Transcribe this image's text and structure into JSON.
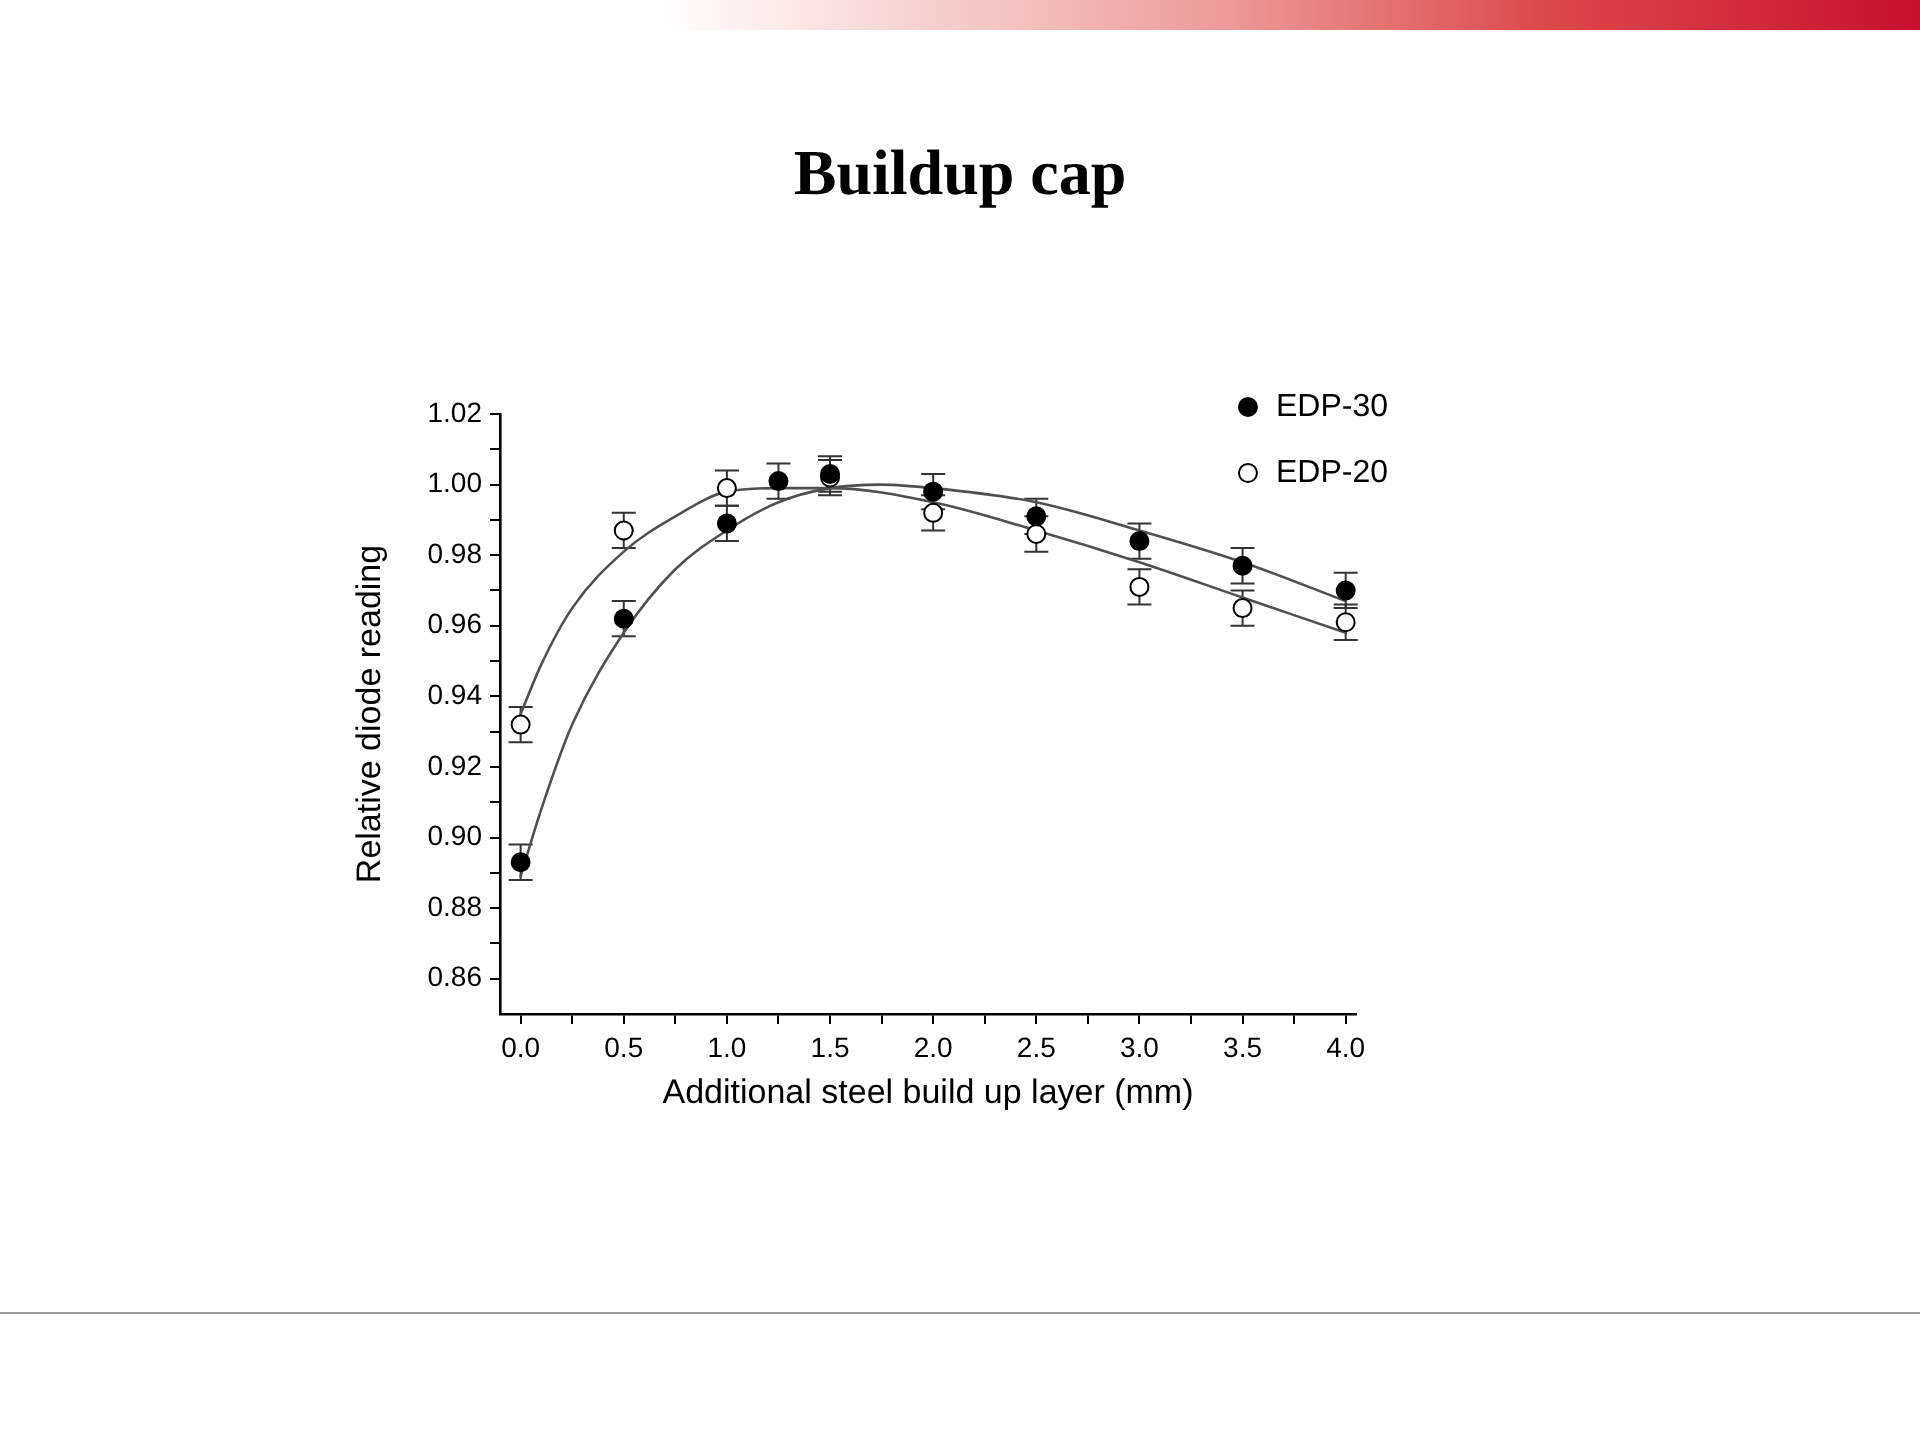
{
  "chart_data": {
    "type": "scatter",
    "title": "Buildup cap",
    "xlabel": "Additional steel build up layer (mm)",
    "ylabel": "Relative diode reading",
    "xlim": [
      -0.1,
      4.05
    ],
    "ylim": [
      0.85,
      1.02
    ],
    "xticks": [
      {
        "value": 0,
        "label": "0.0"
      },
      {
        "value": 0.25,
        "label": null
      },
      {
        "value": 0.5,
        "label": "0.5"
      },
      {
        "value": 0.75,
        "label": null
      },
      {
        "value": 1,
        "label": "1.0"
      },
      {
        "value": 1.25,
        "label": null
      },
      {
        "value": 1.5,
        "label": "1.5"
      },
      {
        "value": 1.75,
        "label": null
      },
      {
        "value": 2,
        "label": "2.0"
      },
      {
        "value": 2.25,
        "label": null
      },
      {
        "value": 2.5,
        "label": "2.5"
      },
      {
        "value": 2.75,
        "label": null
      },
      {
        "value": 3,
        "label": "3.0"
      },
      {
        "value": 3.25,
        "label": null
      },
      {
        "value": 3.5,
        "label": "3.5"
      },
      {
        "value": 3.75,
        "label": null
      },
      {
        "value": 4,
        "label": "4.0"
      }
    ],
    "yticks": [
      0.86,
      {
        "value": 0.87,
        "label": null
      },
      0.88,
      {
        "value": 0.89,
        "label": null
      },
      {
        "value": 0.9,
        "label": "0.90"
      },
      {
        "value": 0.91,
        "label": null
      },
      0.92,
      {
        "value": 0.93,
        "label": null
      },
      0.94,
      {
        "value": 0.95,
        "label": null
      },
      0.96,
      {
        "value": 0.97,
        "label": null
      },
      0.98,
      {
        "value": 0.99,
        "label": null
      },
      {
        "value": 1,
        "label": "1.00"
      },
      {
        "value": 1.01,
        "label": null
      },
      1.02
    ],
    "grid": false,
    "legend": "top right",
    "marker": "circle",
    "series": [
      {
        "name": "EDP-30",
        "type": "scatter",
        "color": "#000000",
        "x": [
          0,
          0.5,
          1,
          1.25,
          1.5,
          2,
          2.5,
          3,
          3.5,
          4
        ],
        "values": [
          0.893,
          0.962,
          0.989,
          1.001,
          1.003,
          0.998,
          0.991,
          0.984,
          0.977,
          0.97
        ],
        "errors": [
          0.005,
          0.005,
          0.005,
          0.005,
          0.005,
          0.005,
          0.005,
          0.005,
          0.005,
          0.005
        ]
      },
      {
        "name": "EDP-20",
        "type": "scatter",
        "color": "#ffffff",
        "x": [
          0,
          0.5,
          1,
          1.5,
          2,
          2.5,
          3,
          3.5,
          4
        ],
        "values": [
          0.932,
          0.987,
          0.999,
          1.002,
          0.992,
          0.986,
          0.971,
          0.965,
          0.961
        ],
        "errors": [
          0.005,
          0.005,
          0.005,
          0.005,
          0.005,
          0.005,
          0.005,
          0.005,
          0.005
        ]
      },
      {
        "type": "line",
        "color": "#505050",
        "marker": "none",
        "x": [
          0,
          0.1,
          0.25,
          0.5,
          0.75,
          1,
          1.25,
          1.5,
          1.75,
          2,
          2.5,
          3,
          3.5,
          4
        ],
        "values": [
          0.889,
          0.908,
          0.932,
          0.958,
          0.976,
          0.987,
          0.995,
          0.999,
          1.0,
          0.999,
          0.995,
          0.987,
          0.978,
          0.967
        ]
      },
      {
        "type": "line",
        "color": "#505050",
        "marker": "none",
        "x": [
          0,
          0.1,
          0.25,
          0.5,
          0.75,
          1,
          1.25,
          1.5,
          2,
          2.5,
          3,
          3.5,
          4
        ],
        "values": [
          0.935,
          0.949,
          0.965,
          0.981,
          0.991,
          0.998,
          0.999,
          0.999,
          0.995,
          0.987,
          0.978,
          0.968,
          0.958
        ]
      }
    ]
  }
}
